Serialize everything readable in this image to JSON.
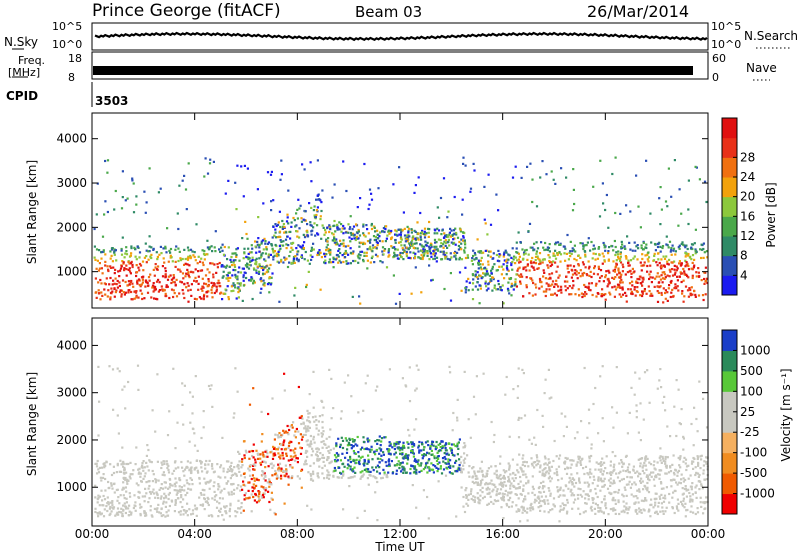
{
  "header": {
    "station": "Prince George (fitACF)",
    "beam": "Beam 03",
    "date": "26/Mar/2014"
  },
  "strips": {
    "nsky_label": "N.Sky",
    "nsky_ticks": [
      "10^5",
      "10^0"
    ],
    "nsearch_label": "N.Search",
    "nsearch_ticks": [
      "10^5",
      "10^0"
    ],
    "freq_label_1": "Freq.",
    "freq_label_2": "[MHz]",
    "freq_ticks": [
      "18",
      "8"
    ],
    "nave_label": "Nave",
    "nave_ticks": [
      "60",
      "0"
    ],
    "cpid_label": "CPID",
    "cpid_value": "3503"
  },
  "colors": {
    "power_scale": [
      "#1b1bf0",
      "#2a4fb4",
      "#2f8a66",
      "#4aa84a",
      "#8cc83c",
      "#f2a20c",
      "#f07010",
      "#e83018",
      "#e01010"
    ],
    "velocity_scale": [
      "#f00000",
      "#f05a00",
      "#f08c20",
      "#f5b060",
      "#c8c8c0",
      "#c8c8c0",
      "#58c838",
      "#2a8a5a",
      "#1a3ec8"
    ]
  },
  "chart_data": [
    {
      "type": "heatmap",
      "title": "",
      "ylabel": "Slant Range [km]",
      "xlabel": "",
      "ylim": [
        180,
        4580
      ],
      "yticks": [
        "1000",
        "2000",
        "3000",
        "4000"
      ],
      "xlim": [
        0,
        24
      ],
      "colorbar": {
        "label": "Power [dB]",
        "ticks": [
          "4",
          "8",
          "12",
          "16",
          "20",
          "24",
          "28"
        ]
      }
    },
    {
      "type": "heatmap",
      "title": "",
      "ylabel": "Slant Range [km]",
      "xlabel": "Time UT",
      "ylim": [
        180,
        4580
      ],
      "yticks": [
        "1000",
        "2000",
        "3000",
        "4000"
      ],
      "xlim": [
        0,
        24
      ],
      "xticks": [
        "00:00",
        "04:00",
        "08:00",
        "12:00",
        "16:00",
        "20:00",
        "00:00"
      ],
      "colorbar": {
        "label": "Velocity [m s⁻¹]",
        "ticks": [
          "1000",
          "500",
          "100",
          "25",
          "-25",
          "-100",
          "-500",
          "-1000"
        ]
      }
    }
  ]
}
